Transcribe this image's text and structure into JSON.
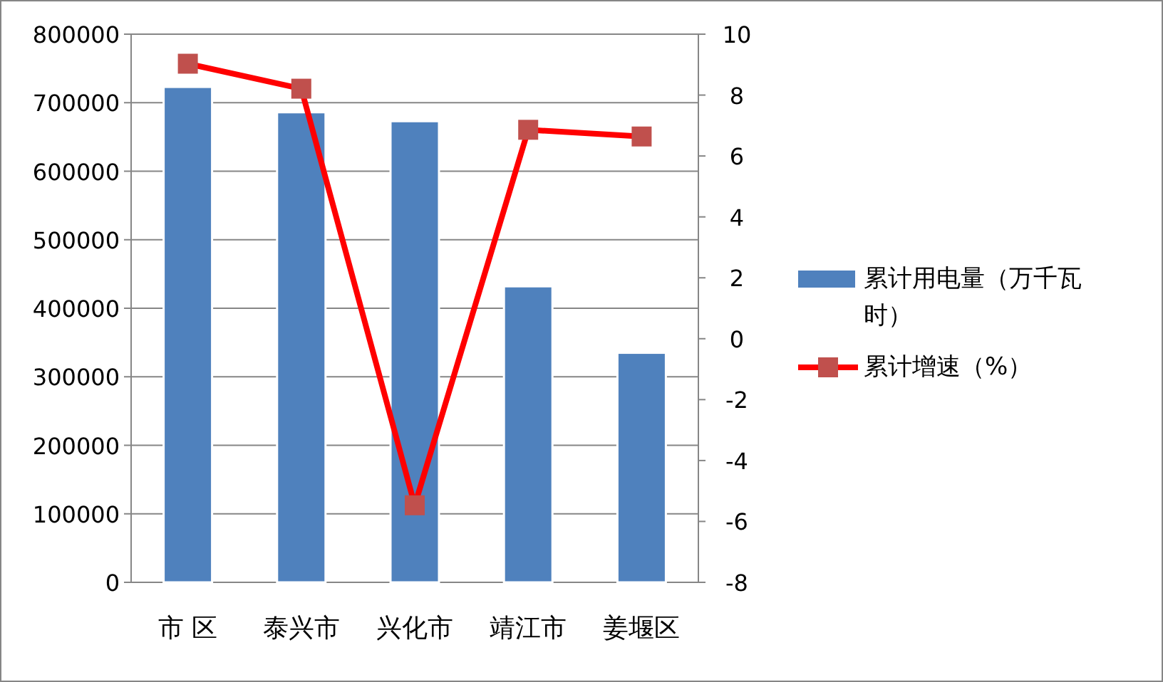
{
  "chart_data": {
    "type": "bar",
    "categories": [
      "市 区",
      "泰兴市",
      "兴化市",
      "靖江市",
      "姜堰区"
    ],
    "series": [
      {
        "name": "累计用电量（万千瓦时）",
        "color": "#4f81bd",
        "values": [
          723000,
          686000,
          673000,
          432000,
          335000
        ]
      },
      {
        "name": "累计增速（%）",
        "type": "line",
        "axis": "y2",
        "color": "#ff0000",
        "marker": "square",
        "values": [
          9.03,
          8.21,
          -5.47,
          6.86,
          6.64
        ]
      }
    ],
    "ylim": [
      0,
      800000
    ],
    "yticks": [
      0,
      100000,
      200000,
      300000,
      400000,
      500000,
      600000,
      700000,
      800000
    ],
    "y2lim": [
      -8,
      10
    ],
    "y2ticks": [
      -8,
      -6,
      -4,
      -2,
      0,
      2,
      4,
      6,
      8,
      10
    ],
    "grid": "y",
    "legend": "right"
  }
}
